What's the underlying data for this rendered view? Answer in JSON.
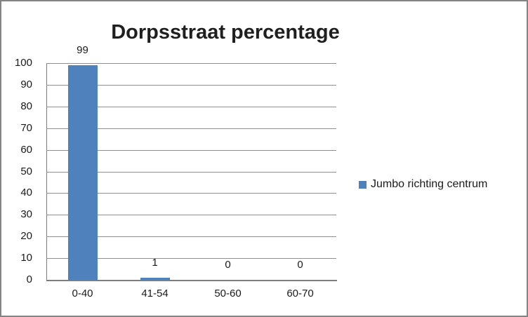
{
  "chart": {
    "title": "Dorpsstraat percentage",
    "legend": {
      "label": "Jumbo richting centrum"
    }
  },
  "chart_data": {
    "type": "bar",
    "title": "Dorpsstraat percentage",
    "categories": [
      "0-40",
      "41-54",
      "50-60",
      "60-70"
    ],
    "series": [
      {
        "name": "Jumbo richting centrum",
        "values": [
          99,
          1,
          0,
          0
        ]
      }
    ],
    "data_labels": [
      "99",
      "1",
      "0",
      "0"
    ],
    "xlabel": "",
    "ylabel": "",
    "ylim": [
      0,
      100
    ],
    "ytick_step": 10,
    "grid": true,
    "legend_position": "right",
    "bar_color": "#4F81BD"
  },
  "colors": {
    "bar": "#4F81BD",
    "gridline": "#8F8F8F",
    "axis": "#7D7D7D",
    "outer_border": "#848484",
    "text": "#1A1A1A"
  }
}
